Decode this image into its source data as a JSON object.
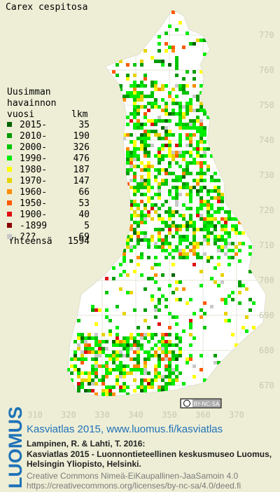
{
  "title": "Carex cespitosa",
  "legend": {
    "heading": [
      "Uusimman",
      "havainnon",
      "vuosi"
    ],
    "count_heading": "lkm",
    "items": [
      {
        "label": "2015-",
        "count": 35,
        "color": "#006400"
      },
      {
        "label": "2010-",
        "count": 190,
        "color": "#009a00"
      },
      {
        "label": "2000-",
        "count": 326,
        "color": "#00c400"
      },
      {
        "label": "1990-",
        "count": 476,
        "color": "#00ec00"
      },
      {
        "label": "1980-",
        "count": 187,
        "color": "#ffff00"
      },
      {
        "label": "1970-",
        "count": 147,
        "color": "#e6d200"
      },
      {
        "label": "1960-",
        "count": 66,
        "color": "#ff8c00"
      },
      {
        "label": "1950-",
        "count": 53,
        "color": "#ff5a00"
      },
      {
        "label": "1900-",
        "count": 40,
        "color": "#e01010"
      },
      {
        "label": "-1899",
        "count": 5,
        "color": "#8b0000"
      },
      {
        "label": "???",
        "count": 69,
        "color": "#c8c8c8"
      }
    ],
    "total_label": "Yhteensä",
    "total": 1594
  },
  "map": {
    "y_labels": [
      770,
      760,
      750,
      740,
      730,
      720,
      710,
      700,
      690,
      680,
      670
    ],
    "x_labels": [
      310,
      320,
      330,
      340,
      350,
      360,
      370
    ]
  },
  "badge": "BY-NC-SA",
  "footer": {
    "logo": "LUOMUS",
    "atlas": "Kasviatlas 2015, www.luomus.fi/kasviatlas",
    "citation": [
      "Lampinen, R. & Lahti, T. 2016:",
      "Kasviatlas 2015 - Luonnontieteellinen keskusmuseo Luomus,",
      "Helsingin Yliopisto, Helsinki."
    ],
    "license": [
      "Creative Commons Nimeä-EiKaupallinen-JaaSamoin 4.0",
      "https://creativecommons.org/licenses/by-nc-sa/4.0/deed.fi"
    ]
  }
}
